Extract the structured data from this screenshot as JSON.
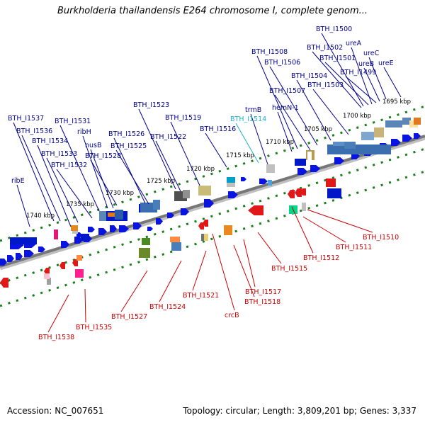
{
  "title": "Burkholderia thailandensis E264 chromosome I, complete genom...",
  "footer": {
    "accession": "Accession: NC_007651",
    "summary": "Topology: circular; Length: 3,809,201 bp; Genes: 3,337"
  },
  "colors": {
    "upper_label": "#00008b",
    "lower_label": "#cc0000",
    "highlight_label": "#20b2c8",
    "tick": "#1a7f1a",
    "axis": "#808080"
  },
  "scale_labels": [
    "1695 kbp",
    "1700 kbp",
    "1705 kbp",
    "1710 kbp",
    "1715 kbp",
    "1720 kbp",
    "1725 kbp",
    "1730 kbp",
    "1735 kbp",
    "1740 kbp"
  ],
  "upper_genes": [
    "BTH_I1500",
    "ureA",
    "BTH_I1502",
    "ureC",
    "BTH_I1501",
    "ureB",
    "ureE",
    "BTH_I1499",
    "BTH_I1508",
    "BTH_I1506",
    "BTH_I1504",
    "BTH_I1503",
    "BTH_I1507",
    "hemN-1",
    "trmB",
    "BTH_I1514",
    "BTH_I1523",
    "BTH_I1519",
    "BTH_I1516",
    "BTH_I1526",
    "BTH_I1522",
    "BTH_I1525",
    "BTH_I1537",
    "BTH_I1531",
    "BTH_I1536",
    "ribH",
    "BTH_I1534",
    "nusB",
    "BTH_I1533",
    "BTH_I1528",
    "BTH_I1532",
    "ribE"
  ],
  "lower_genes": [
    "BTH_I1510",
    "BTH_I1511",
    "BTH_I1512",
    "BTH_I1515",
    "BTH_I1517",
    "BTH_I1518",
    "crcB",
    "BTH_I1521",
    "BTH_I1524",
    "BTH_I1527",
    "BTH_I1535",
    "BTH_I1538"
  ]
}
